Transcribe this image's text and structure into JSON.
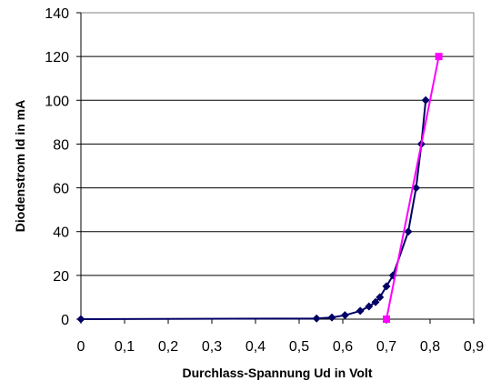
{
  "chart_data": {
    "type": "scatter",
    "xlabel": "Durchlass-Spannung Ud in Volt",
    "ylabel": "Diodenstrom Id in mA",
    "xlim": [
      0,
      0.9
    ],
    "ylim": [
      0,
      140
    ],
    "x_ticks": [
      "0",
      "0,1",
      "0,2",
      "0,3",
      "0,4",
      "0,5",
      "0,6",
      "0,7",
      "0,8",
      "0,9"
    ],
    "y_ticks": [
      "0",
      "20",
      "40",
      "60",
      "80",
      "100",
      "120",
      "140"
    ],
    "grid": "horizontal",
    "legend": "none",
    "series": [
      {
        "color": "#000066",
        "marker": "diamond",
        "points": [
          [
            0,
            0
          ],
          [
            0.54,
            0.3
          ],
          [
            0.575,
            0.8
          ],
          [
            0.605,
            1.8
          ],
          [
            0.64,
            3.8
          ],
          [
            0.66,
            5.8
          ],
          [
            0.675,
            7.8
          ],
          [
            0.685,
            10.0
          ],
          [
            0.7,
            15.0
          ],
          [
            0.715,
            20.0
          ],
          [
            0.75,
            40.0
          ],
          [
            0.768,
            60.0
          ],
          [
            0.78,
            80.0
          ],
          [
            0.79,
            100.0
          ]
        ]
      },
      {
        "color": "#ff00ff",
        "marker": "square",
        "points": [
          [
            0.7,
            0
          ],
          [
            0.82,
            120
          ]
        ]
      }
    ]
  }
}
